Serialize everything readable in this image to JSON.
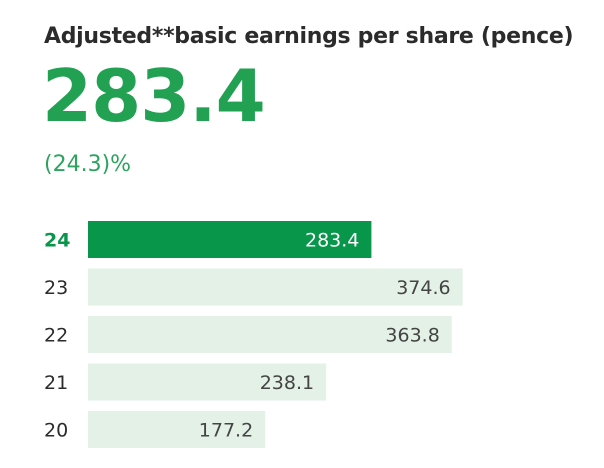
{
  "title": "Adjusted**basic earnings per share (pence)",
  "headline_value": "283.4",
  "change": "(24.3)%",
  "colors": {
    "accent": "#07964a",
    "bar_light": "#e3f1e7",
    "text_dark": "#2b2b2b",
    "headline": "#22a153",
    "change": "#2ea35f"
  },
  "chart_data": {
    "type": "bar",
    "orientation": "horizontal",
    "title": "Adjusted**basic earnings per share (pence)",
    "categories": [
      "24",
      "23",
      "22",
      "21",
      "20"
    ],
    "values": [
      283.4,
      374.6,
      363.8,
      238.1,
      177.2
    ],
    "labels": [
      "283.4",
      "374.6",
      "363.8",
      "238.1",
      "177.2"
    ],
    "highlight_category": "24",
    "xlabel": "",
    "ylabel": "",
    "grid": false
  }
}
